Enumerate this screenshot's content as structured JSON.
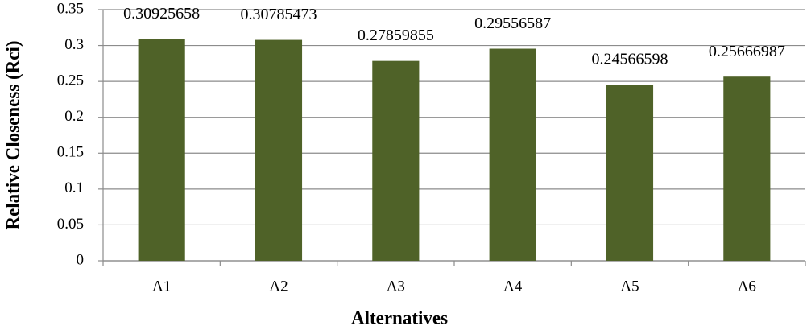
{
  "chart_data": {
    "type": "bar",
    "x_label": "Alternatives",
    "y_label": "Relative Closeness (Rci)",
    "categories": [
      "A1",
      "A2",
      "A3",
      "A4",
      "A5",
      "A6"
    ],
    "values": [
      0.30925658,
      0.30785473,
      0.27859855,
      0.29556587,
      0.24566598,
      0.25666987
    ],
    "color": "#4f6228",
    "ylim": [
      0,
      0.35
    ],
    "yticks": [
      0,
      0.05,
      0.1,
      0.15,
      0.2,
      0.25,
      0.3,
      0.35
    ],
    "grid": true
  }
}
